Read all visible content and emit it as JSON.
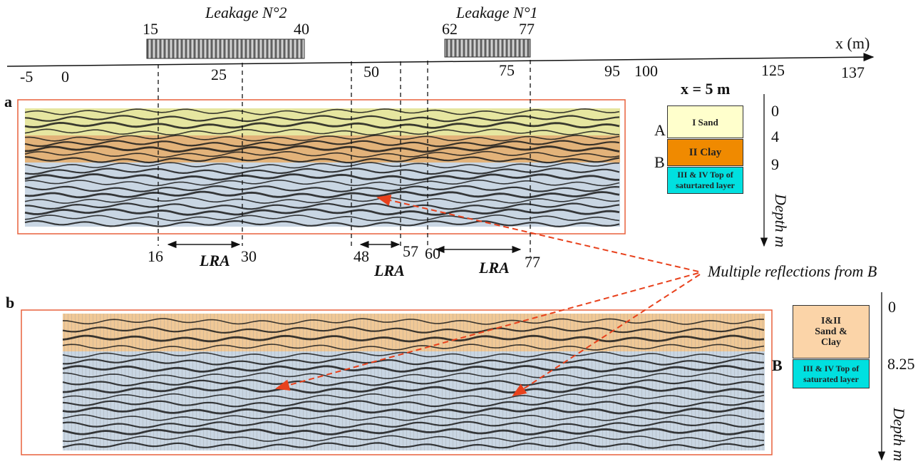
{
  "axis": {
    "label": "x (m)",
    "ticks": [
      "-5",
      "0",
      "25",
      "50",
      "75",
      "95",
      "100",
      "125",
      "137"
    ]
  },
  "leakages": [
    {
      "label": "Leakage N°2",
      "start": "15",
      "end": "40"
    },
    {
      "label": "Leakage N°1",
      "start": "62",
      "end": "77"
    }
  ],
  "panel_a": {
    "label": "a",
    "lra": [
      {
        "start": "16",
        "end": "30",
        "label": "LRA"
      },
      {
        "start": "48",
        "end": "57",
        "label": "LRA"
      },
      {
        "start": "60",
        "end": "77",
        "label": "LRA"
      }
    ],
    "legend": {
      "title": "x = 5 m",
      "layers": [
        "I  Sand",
        "II Clay",
        "III & IV   Top of saturtared layer"
      ],
      "depths": [
        "0",
        "4",
        "9"
      ],
      "boundaries": [
        "A",
        "B"
      ],
      "axis_label": "Depth m"
    }
  },
  "panel_b": {
    "label": "b",
    "legend": {
      "layers": [
        "I&II Sand & Clay",
        "III & IV Top of saturated layer"
      ],
      "depths": [
        "0",
        "8.25"
      ],
      "boundaries": [
        "B"
      ],
      "axis_label": "Depth m"
    }
  },
  "annotation": "Multiple reflections from B"
}
